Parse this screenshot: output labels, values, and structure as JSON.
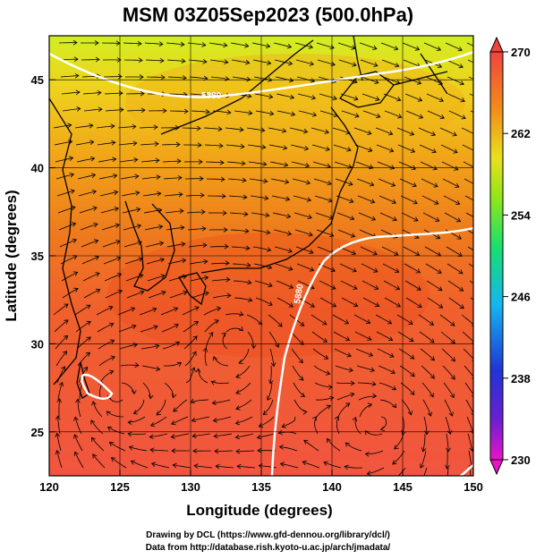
{
  "title": "MSM 03Z05Sep2023 (500.0hPa)",
  "axes": {
    "xlabel": "Longitude (degrees)",
    "ylabel": "Latitude  (degrees)",
    "xticks": [
      "120",
      "125",
      "130",
      "135",
      "140",
      "145",
      "150"
    ],
    "yticks": [
      "25",
      "30",
      "35",
      "40",
      "45"
    ],
    "xlim": [
      120,
      150
    ],
    "ylim": [
      22.5,
      47.5
    ]
  },
  "colorbar": {
    "ticks": [
      "230",
      "238",
      "246",
      "254",
      "262",
      "270"
    ],
    "range": [
      230,
      270
    ]
  },
  "contour_labels": [
    "5880",
    "5880"
  ],
  "credits": {
    "line1": "Drawing by DCL (https://www.gfd-dennou.org/library/dcl/)",
    "line2": "Data from http://database.rish.kyoto-u.ac.jp/arch/jmadata/"
  },
  "colors": {
    "background": "#ffffff",
    "field_north": "#d9ef1e",
    "field_south": "#f25a45",
    "contour": "#ffffff",
    "streamline": "#000000"
  }
}
